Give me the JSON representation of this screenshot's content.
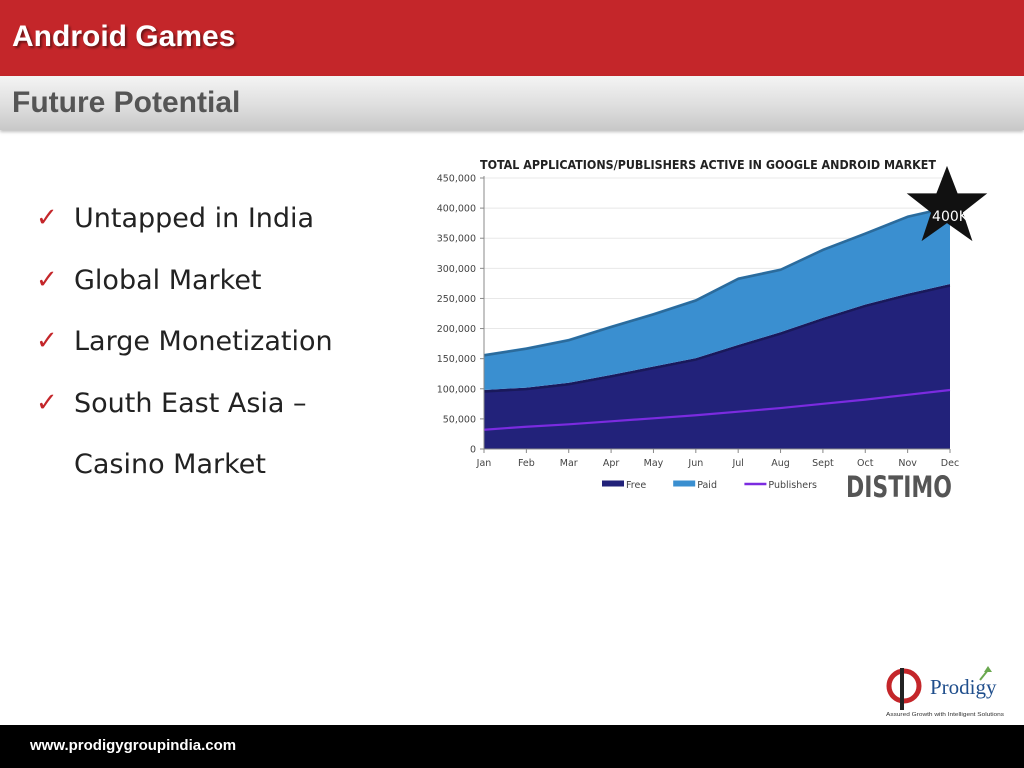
{
  "header": {
    "title": "Android Games",
    "subtitle": "Future Potential"
  },
  "bullets": [
    {
      "text": "Untapped in India"
    },
    {
      "text": "Global Market"
    },
    {
      "text": "Large Monetization"
    },
    {
      "text": "South East Asia –"
    },
    {
      "text": "Casino Market"
    }
  ],
  "chart_data": {
    "type": "area",
    "title": "TOTAL APPLICATIONS/PUBLISHERS ACTIVE IN GOOGLE ANDROID MARKET",
    "categories": [
      "Jan",
      "Feb",
      "Mar",
      "Apr",
      "May",
      "Jun",
      "Jul",
      "Aug",
      "Sept",
      "Oct",
      "Nov",
      "Dec"
    ],
    "ylim": [
      0,
      450000
    ],
    "yticks": [
      0,
      50000,
      100000,
      150000,
      200000,
      250000,
      300000,
      350000,
      400000,
      450000
    ],
    "ytick_labels": [
      "0",
      "50,000",
      "100,000",
      "150,000",
      "200,000",
      "250,000",
      "300,000",
      "350,000",
      "400,000",
      "450,000"
    ],
    "stacked": true,
    "series": [
      {
        "name": "Free",
        "kind": "area",
        "color": "#22227a",
        "values": [
          98000,
          102000,
          110000,
          123000,
          137000,
          151000,
          173000,
          194000,
          218000,
          240000,
          258000,
          274000
        ]
      },
      {
        "name": "Paid",
        "kind": "area",
        "color": "#3a8fd0",
        "values": [
          60000,
          67000,
          73000,
          82000,
          89000,
          98000,
          112000,
          106000,
          115000,
          120000,
          130000,
          130000
        ]
      },
      {
        "name": "Publishers",
        "kind": "line",
        "color": "#7b2be0",
        "values": [
          32000,
          37000,
          41000,
          46000,
          51000,
          56000,
          62000,
          68000,
          75000,
          82000,
          90000,
          98000
        ]
      }
    ],
    "legend_position": "bottom",
    "annotation": "400K",
    "watermark": "DISTIMO"
  },
  "footer": {
    "url": "www.prodigygroupindia.com"
  },
  "logo": {
    "name": "Prodigy",
    "tagline": "Assured Growth with Intelligent Solutions"
  },
  "colors": {
    "banner": "#c4262a",
    "subbanner": "#dedede",
    "footer": "#000000",
    "check": "#c4262a"
  },
  "icons": {
    "bullet": "check-icon",
    "chart_badge": "star-icon"
  }
}
